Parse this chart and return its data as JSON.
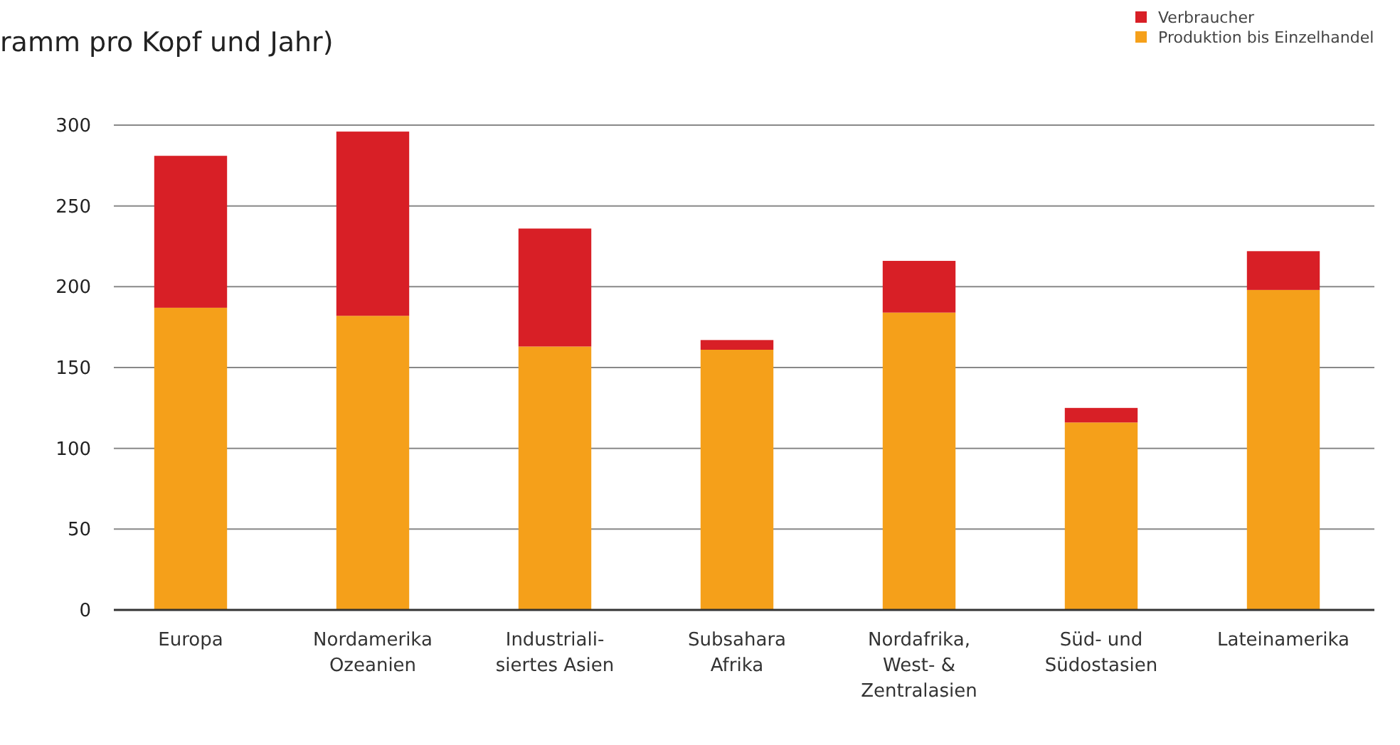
{
  "chart_data": {
    "type": "bar",
    "subtitle": "ramm pro Kopf und Jahr)",
    "categories": [
      "Europa",
      "Nordamerika\nOzeanien",
      "Industriali-\nsiertes Asien",
      "Subsahara\nAfrika",
      "Nordafrika,\nWest- &\nZentralasien",
      "Süd- und\nSüdostasien",
      "Lateinamerika"
    ],
    "stacked": true,
    "series": [
      {
        "name": "Produktion bis Einzelhandel",
        "color": "#f5a01a",
        "values": [
          187,
          182,
          163,
          161,
          184,
          116,
          198
        ]
      },
      {
        "name": "Verbraucher",
        "color": "#d81f26",
        "values": [
          94,
          114,
          73,
          6,
          32,
          9,
          24
        ]
      }
    ],
    "ylim": [
      0,
      300
    ],
    "yticks": [
      0,
      50,
      100,
      150,
      200,
      250,
      300
    ],
    "grid": "y",
    "legend": "top right"
  }
}
